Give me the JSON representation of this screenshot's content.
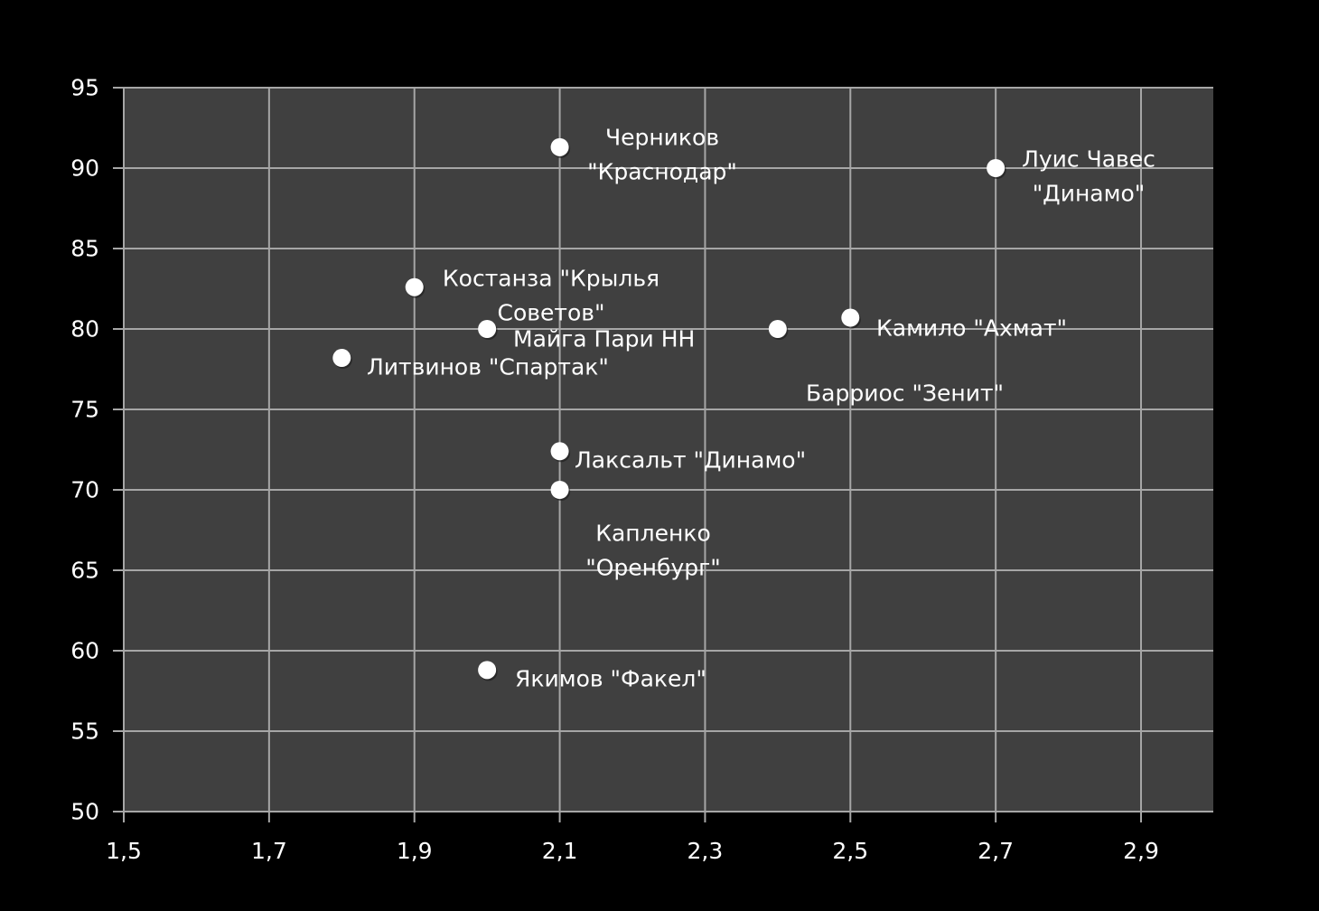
{
  "chart_data": {
    "type": "scatter",
    "title": "",
    "xlabel": "",
    "ylabel": "",
    "xlim": [
      1.5,
      3.0
    ],
    "ylim": [
      50,
      95
    ],
    "x_ticks": [
      "1,5",
      "1,7",
      "1,9",
      "2,1",
      "2,3",
      "2,5",
      "2,7",
      "2,9"
    ],
    "x_tick_values": [
      1.5,
      1.7,
      1.9,
      2.1,
      2.3,
      2.5,
      2.7,
      2.9
    ],
    "y_ticks": [
      "50",
      "55",
      "60",
      "65",
      "70",
      "75",
      "80",
      "85",
      "90",
      "95"
    ],
    "y_tick_values": [
      50,
      55,
      60,
      65,
      70,
      75,
      80,
      85,
      90,
      95
    ],
    "grid": true,
    "legend": false,
    "colors": {
      "background": "#000000",
      "plot_area": "#404040",
      "grid": "#a6a6a6",
      "marker": "#ffffff",
      "text": "#ffffff"
    },
    "points": [
      {
        "label_lines": [
          "Черников",
          "\"Краснодар\""
        ],
        "x": 2.1,
        "y": 91.3
      },
      {
        "label_lines": [
          "Луис Чавес",
          "\"Динамо\""
        ],
        "x": 2.7,
        "y": 90.0
      },
      {
        "label_lines": [
          "Костанза \"Крылья",
          "Советов\""
        ],
        "x": 1.9,
        "y": 82.6
      },
      {
        "label_lines": [
          "Майга Пари НН"
        ],
        "x": 2.0,
        "y": 80.0
      },
      {
        "label_lines": [
          "Литвинов  \"Спартак\""
        ],
        "x": 1.8,
        "y": 78.2
      },
      {
        "label_lines": [
          "Барриос \"Зенит\""
        ],
        "x": 2.4,
        "y": 80.0
      },
      {
        "label_lines": [
          "Камило \"Ахмат\""
        ],
        "x": 2.5,
        "y": 80.7
      },
      {
        "label_lines": [
          "Лаксальт \"Динамо\""
        ],
        "x": 2.1,
        "y": 72.4
      },
      {
        "label_lines": [
          "Капленко",
          "\"Оренбург\""
        ],
        "x": 2.1,
        "y": 70.0
      },
      {
        "label_lines": [
          "Якимов \"Факел\""
        ],
        "x": 2.0,
        "y": 58.8
      }
    ]
  }
}
